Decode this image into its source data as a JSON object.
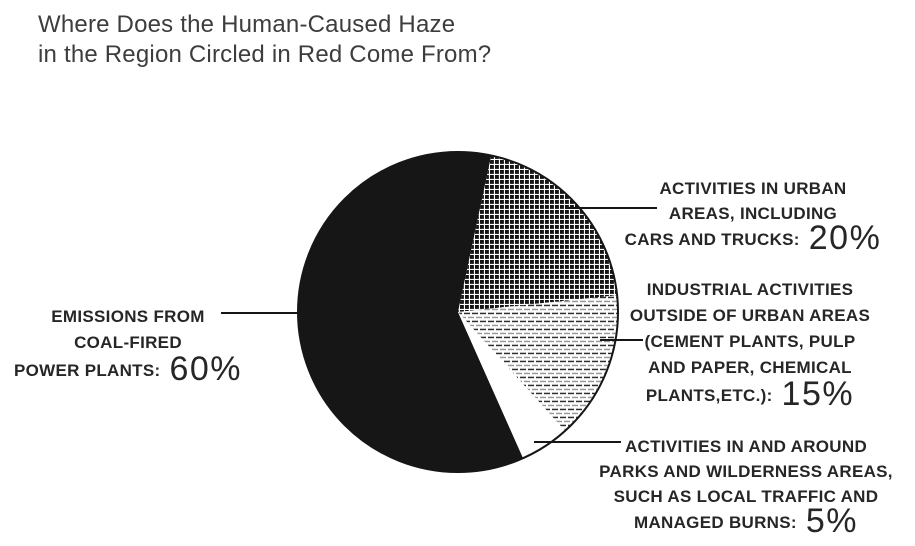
{
  "title": {
    "lines": [
      "Where Does the Human-Caused Haze",
      "in the Region Circled in Red Come From?"
    ]
  },
  "chart_data": {
    "type": "pie",
    "title": "Where Does the Human-Caused Haze in the Region Circled in Red Come From?",
    "start_angle_deg": 156,
    "angle_reference": "clockwise-from-12-oclock",
    "legend_position": "callout-labels-around-pie",
    "grid": false,
    "slices": [
      {
        "key": "coal",
        "label": "EMISSIONS FROM COAL-FIRED POWER PLANTS",
        "value": 60,
        "pct_text": "60%",
        "pattern": "solid-black"
      },
      {
        "key": "urban",
        "label": "ACTIVITIES IN URBAN AREAS, INCLUDING CARS AND TRUCKS",
        "value": 20,
        "pct_text": "20%",
        "pattern": "crosshatch"
      },
      {
        "key": "industrial",
        "label": "INDUSTRIAL ACTIVITIES OUTSIDE OF URBAN AREAS (CEMENT PLANTS, PULP AND PAPER, CHEMICAL PLANTS,ETC.)",
        "value": 15,
        "pct_text": "15%",
        "pattern": "dashed-lines"
      },
      {
        "key": "parks",
        "label": "ACTIVITIES IN AND AROUND PARKS AND WILDERNESS AREAS, SUCH AS LOCAL TRAFFIC AND MANAGED BURNS",
        "value": 5,
        "pct_text": "5%",
        "pattern": "white"
      }
    ]
  },
  "callouts": {
    "coal": {
      "lines": [
        "EMISSIONS FROM",
        "COAL-FIRED",
        "POWER PLANTS:"
      ],
      "pct": "60%"
    },
    "urban": {
      "lines": [
        "ACTIVITIES IN URBAN",
        "AREAS, INCLUDING",
        "CARS AND TRUCKS:"
      ],
      "pct": "20%"
    },
    "industrial": {
      "lines": [
        "INDUSTRIAL ACTIVITIES",
        "OUTSIDE OF URBAN AREAS",
        "(CEMENT PLANTS, PULP",
        "AND PAPER, CHEMICAL",
        "PLANTS,ETC.):"
      ],
      "pct": "15%"
    },
    "parks": {
      "lines": [
        "ACTIVITIES IN AND AROUND",
        "PARKS AND WILDERNESS AREAS,",
        "SUCH AS LOCAL TRAFFIC AND",
        "MANAGED BURNS:"
      ],
      "pct": "5%"
    }
  },
  "colors": {
    "ink": "#262626",
    "title_ink": "#3d3d3d",
    "pie_black": "#161616",
    "dash_dark": "#2e2e2e",
    "dash_light": "#999999",
    "background": "#ffffff"
  }
}
